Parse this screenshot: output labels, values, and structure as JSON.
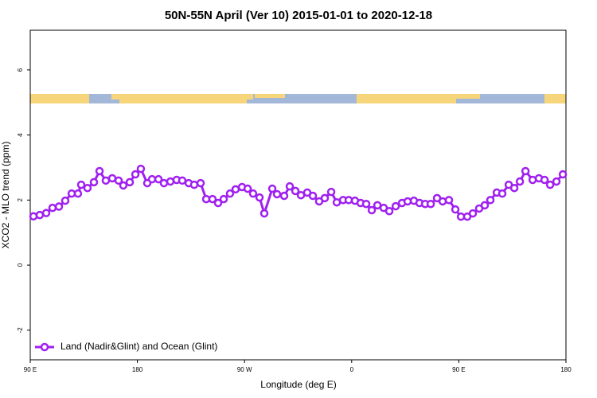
{
  "chart_data": {
    "type": "line",
    "title": "50N-55N April (Ver 10)   2015-01-01 to 2020-12-18",
    "x_label": "Longitude (deg E)",
    "y_label": "XCO2 - MLO trend (ppm)",
    "xlim": [
      90,
      540
    ],
    "ylim": [
      -2.91,
      7.22
    ],
    "xticks": [
      {
        "value": 90,
        "label": "90 E"
      },
      180,
      {
        "value": 270,
        "label": "90 W"
      },
      {
        "value": 360,
        "label": "0"
      },
      {
        "value": 450,
        "label": "90 E"
      },
      {
        "value": 540,
        "label": "180"
      }
    ],
    "yticks": [
      -2,
      0,
      2,
      4,
      6
    ],
    "legend": "bottom-left",
    "x": [
      92.7,
      98.0,
      103.4,
      108.7,
      114.1,
      119.4,
      124.8,
      130.1,
      132.8,
      138.1,
      143.5,
      148.2,
      153.5,
      158.9,
      164.2,
      168.2,
      173.6,
      178.3,
      182.9,
      188.3,
      192.3,
      197.7,
      202.3,
      207.7,
      213.0,
      217.7,
      223.1,
      227.7,
      233.1,
      237.8,
      243.1,
      247.8,
      252.5,
      257.8,
      262.5,
      267.9,
      272.6,
      277.2,
      282.6,
      286.6,
      293.3,
      297.3,
      303.3,
      308.0,
      312.7,
      317.4,
      322.7,
      327.4,
      332.7,
      337.4,
      342.8,
      347.5,
      352.8,
      357.5,
      362.8,
      367.5,
      372.2,
      376.9,
      381.6,
      386.9,
      391.6,
      397.0,
      402.3,
      407.0,
      412.3,
      417.0,
      421.7,
      426.4,
      431.7,
      436.4,
      441.7,
      447.1,
      451.8,
      457.1,
      461.8,
      467.1,
      471.8,
      476.5,
      481.9,
      486.5,
      491.9,
      496.6,
      501.3,
      506.0,
      512.0,
      517.3,
      522.0,
      526.7,
      532.0,
      537.4
    ],
    "series": [
      {
        "name": "Land (Nadir&Glint) and Ocean (Glint)",
        "color": "#a020f0",
        "values": [
          1.5,
          1.54,
          1.6,
          1.76,
          1.8,
          1.98,
          2.2,
          2.2,
          2.47,
          2.37,
          2.55,
          2.89,
          2.6,
          2.67,
          2.6,
          2.45,
          2.55,
          2.79,
          2.96,
          2.52,
          2.64,
          2.64,
          2.52,
          2.57,
          2.62,
          2.6,
          2.52,
          2.47,
          2.52,
          2.03,
          2.03,
          1.91,
          2.03,
          2.2,
          2.33,
          2.4,
          2.35,
          2.2,
          2.08,
          1.59,
          2.35,
          2.18,
          2.13,
          2.42,
          2.28,
          2.15,
          2.23,
          2.13,
          1.96,
          2.06,
          2.25,
          1.93,
          2.0,
          2.0,
          1.98,
          1.91,
          1.88,
          1.69,
          1.84,
          1.76,
          1.66,
          1.81,
          1.91,
          1.96,
          1.98,
          1.91,
          1.88,
          1.88,
          2.06,
          1.96,
          2.0,
          1.71,
          1.49,
          1.49,
          1.59,
          1.74,
          1.84,
          2.0,
          2.23,
          2.2,
          2.47,
          2.37,
          2.57,
          2.89,
          2.62,
          2.67,
          2.62,
          2.47,
          2.57,
          2.79
        ]
      }
    ]
  }
}
